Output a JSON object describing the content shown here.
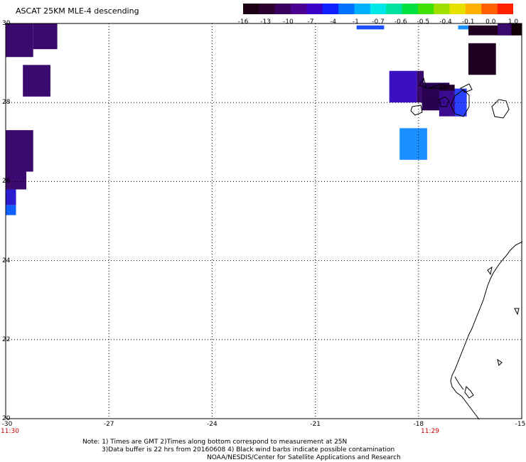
{
  "title": "ASCAT 25KM MLE-4 descending",
  "colorbar": {
    "colors": [
      "#1a0010",
      "#2b0030",
      "#3a0060",
      "#4a0090",
      "#3a00c8",
      "#1020ff",
      "#0070ff",
      "#00b0ff",
      "#00e8e8",
      "#00e0a0",
      "#00e040",
      "#40e000",
      "#a0e000",
      "#e8e000",
      "#ffb000",
      "#ff6000",
      "#ff2000"
    ],
    "tick_labels": [
      "-16",
      "-13",
      "-10",
      "-7",
      "-4",
      "-1",
      "-0.7",
      "-0.6",
      "-0.5",
      "-0.4",
      "-0.1",
      "0.0",
      "1.0"
    ]
  },
  "axes": {
    "x_labels": [
      "-30",
      "-27",
      "-24",
      "-21",
      "-18",
      "-15"
    ],
    "y_labels": [
      "30",
      "28",
      "26",
      "24",
      "22",
      "20"
    ],
    "x_range": [
      -30,
      -15
    ],
    "y_range": [
      20,
      30
    ]
  },
  "times": {
    "left": "11:30",
    "right": "11:29"
  },
  "notes": {
    "line1": "Note: 1) Times are GMT 2)Times along bottom correspond to measurement at 25N",
    "line2": "3)Data buffer is 22 hrs from 20160608 4) Black wind barbs indicate possible contamination",
    "line3": "NOAA/NESDIS/Center for Satellite Applications and Research"
  },
  "data_cells": [
    {
      "lon0": -30.0,
      "lon1": -29.2,
      "lat0": 29.15,
      "lat1": 30.0,
      "color": "#3a0a6e"
    },
    {
      "lon0": -29.2,
      "lon1": -28.5,
      "lat0": 29.35,
      "lat1": 30.0,
      "color": "#3a0a6e"
    },
    {
      "lon0": -29.5,
      "lon1": -28.7,
      "lat0": 28.15,
      "lat1": 28.95,
      "color": "#3a0a6e"
    },
    {
      "lon0": -30.0,
      "lon1": -29.2,
      "lat0": 26.25,
      "lat1": 27.3,
      "color": "#3a0a6e"
    },
    {
      "lon0": -30.0,
      "lon1": -29.4,
      "lat0": 25.8,
      "lat1": 26.25,
      "color": "#3a0a6e"
    },
    {
      "lon0": -30.0,
      "lon1": -29.7,
      "lat0": 25.4,
      "lat1": 25.8,
      "color": "#2a1ad0"
    },
    {
      "lon0": -30.0,
      "lon1": -29.7,
      "lat0": 25.15,
      "lat1": 25.4,
      "color": "#1060ff"
    },
    {
      "lon0": -18.85,
      "lon1": -18.05,
      "lat0": 28.0,
      "lat1": 28.8,
      "color": "#3a10c0"
    },
    {
      "lon0": -18.05,
      "lon1": -17.85,
      "lat0": 28.0,
      "lat1": 28.8,
      "color": "#3a0a6e"
    },
    {
      "lon0": -17.9,
      "lon1": -17.1,
      "lat0": 27.8,
      "lat1": 28.5,
      "color": "#2a0050"
    },
    {
      "lon0": -17.4,
      "lon1": -16.6,
      "lat0": 27.65,
      "lat1": 28.35,
      "color": "#3a0a90"
    },
    {
      "lon0": -16.95,
      "lon1": -16.6,
      "lat0": 27.65,
      "lat1": 28.35,
      "color": "#2a40ff"
    },
    {
      "lon0": -17.4,
      "lon1": -16.95,
      "lat0": 28.3,
      "lat1": 28.45,
      "color": "#20002a"
    },
    {
      "lon0": -18.55,
      "lon1": -17.75,
      "lat0": 26.55,
      "lat1": 27.35,
      "color": "#1a90ff"
    },
    {
      "lon0": -16.55,
      "lon1": -15.75,
      "lat0": 28.7,
      "lat1": 29.5,
      "color": "#200020"
    },
    {
      "lon0": -16.55,
      "lon1": -15.0,
      "lat0": 29.7,
      "lat1": 29.95,
      "color": "#200020"
    },
    {
      "lon0": -15.7,
      "lon1": -15.2,
      "lat0": 29.7,
      "lat1": 30.0,
      "color": "#3a0a6e"
    },
    {
      "lon0": -15.3,
      "lon1": -15.0,
      "lat0": 29.7,
      "lat1": 30.0,
      "color": "#100008"
    },
    {
      "lon0": -16.85,
      "lon1": -16.55,
      "lat0": 29.85,
      "lat1": 29.95,
      "color": "#1a90ff"
    },
    {
      "lon0": -19.8,
      "lon1": -19.0,
      "lat0": 29.85,
      "lat1": 29.95,
      "color": "#1a50ff"
    }
  ]
}
